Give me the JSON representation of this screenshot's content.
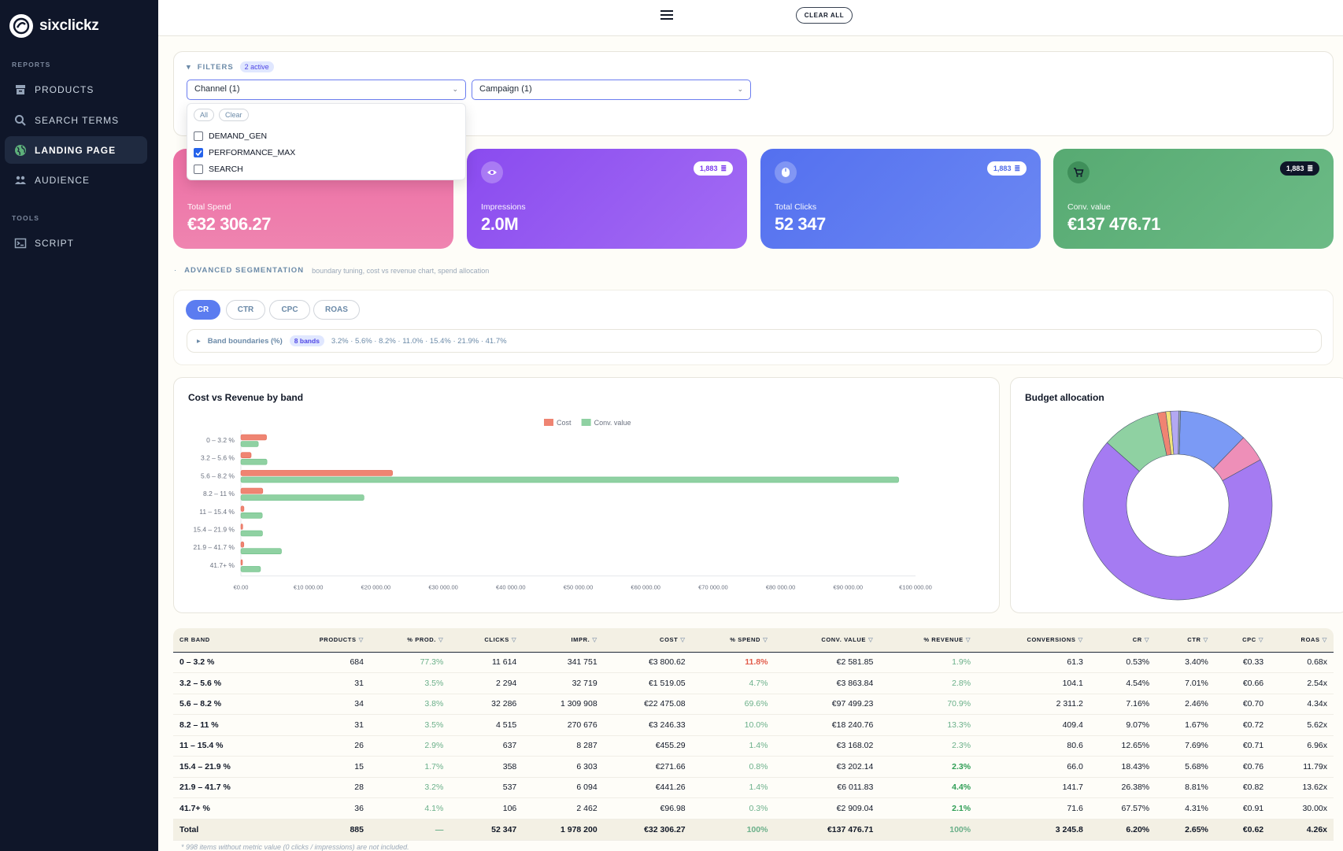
{
  "brand": {
    "name": "sixclickz"
  },
  "sidebar": {
    "sections": [
      {
        "title": "REPORTS",
        "items": [
          {
            "label": "PRODUCTS",
            "icon": "archive-icon"
          },
          {
            "label": "SEARCH TERMS",
            "icon": "search-icon"
          },
          {
            "label": "LANDING PAGE",
            "icon": "globe-icon",
            "active": true
          },
          {
            "label": "AUDIENCE",
            "icon": "users-icon"
          }
        ]
      },
      {
        "title": "TOOLS",
        "items": [
          {
            "label": "SCRIPT",
            "icon": "terminal-icon"
          }
        ]
      }
    ]
  },
  "topbar": {
    "clear_all": "CLEAR ALL"
  },
  "filters": {
    "title": "FILTERS",
    "active_count": "2 active",
    "channel_select": "Channel (1)",
    "campaign_select": "Campaign (1)",
    "dropdown": {
      "all": "All",
      "clear": "Clear",
      "options": [
        {
          "label": "DEMAND_GEN",
          "checked": false
        },
        {
          "label": "PERFORMANCE_MAX",
          "checked": true
        },
        {
          "label": "SEARCH",
          "checked": false
        }
      ]
    }
  },
  "kpis": [
    {
      "label": "Total Spend",
      "value": "€32 306.27",
      "badge": "",
      "color": "#ec6fa4"
    },
    {
      "label": "Impressions",
      "value": "2.0M",
      "badge": "1,883",
      "color": "#9353f0"
    },
    {
      "label": "Total Clicks",
      "value": "52 347",
      "badge": "1,883",
      "color": "#5a78f0"
    },
    {
      "label": "Conv. value",
      "value": "€137 476.71",
      "badge": "1,883",
      "color": "#5db07a"
    }
  ],
  "segmentation": {
    "title": "ADVANCED SEGMENTATION",
    "subtitle": "boundary tuning, cost vs revenue chart, spend allocation",
    "tabs": [
      "CR",
      "CTR",
      "CPC",
      "ROAS"
    ],
    "active_tab": "CR",
    "bands_label": "Band boundaries (%)",
    "bands_count": "8 bands",
    "bands_values": "3.2% · 5.6% · 8.2% · 11.0% · 15.4% · 21.9% · 41.7%"
  },
  "chart_data": [
    {
      "type": "bar",
      "orientation": "horizontal",
      "title": "Cost vs Revenue by band",
      "categories": [
        "0 – 3.2 %",
        "3.2 – 5.6 %",
        "5.6 – 8.2 %",
        "8.2 – 11 %",
        "11 – 15.4 %",
        "15.4 – 21.9 %",
        "21.9 – 41.7 %",
        "41.7+ %"
      ],
      "series": [
        {
          "name": "Cost",
          "color": "#ef8472",
          "values": [
            3800.62,
            1519.05,
            22475.08,
            3246.33,
            455.29,
            271.66,
            441.26,
            96.98
          ]
        },
        {
          "name": "Conv. value",
          "color": "#8fd1a2",
          "values": [
            2581.85,
            3863.84,
            97499.23,
            18240.76,
            3168.02,
            3202.14,
            6011.83,
            2909.04
          ]
        }
      ],
      "xlim": [
        0,
        100000
      ],
      "xticks": [
        "€0.00",
        "€10 000.00",
        "€20 000.00",
        "€30 000.00",
        "€40 000.00",
        "€50 000.00",
        "€60 000.00",
        "€70 000.00",
        "€80 000.00",
        "€90 000.00",
        "€100 000.00"
      ],
      "legend": "top-center"
    },
    {
      "type": "pie",
      "title": "Budget allocation",
      "donut": true,
      "slices": [
        {
          "value": 11.8,
          "color": "#7b9af5"
        },
        {
          "value": 4.7,
          "color": "#ee8fb8"
        },
        {
          "value": 69.6,
          "color": "#a57bf2"
        },
        {
          "value": 10.0,
          "color": "#8fd1a2"
        },
        {
          "value": 1.4,
          "color": "#ef8472"
        },
        {
          "value": 0.8,
          "color": "#f2e37a"
        },
        {
          "value": 1.4,
          "color": "#b3a8f2"
        },
        {
          "value": 0.3,
          "color": "#9aa8b8"
        }
      ]
    }
  ],
  "table": {
    "headers": [
      "CR BAND",
      "PRODUCTS",
      "% PROD.",
      "CLICKS",
      "IMPR.",
      "COST",
      "% SPEND",
      "CONV. VALUE",
      "% REVENUE",
      "CONVERSIONS",
      "CR",
      "CTR",
      "CPC",
      "ROAS"
    ],
    "rows": [
      [
        "0 – 3.2 %",
        "684",
        "77.3%",
        "11 614",
        "341 751",
        "€3 800.62",
        "11.8%",
        "€2 581.85",
        "1.9%",
        "61.3",
        "0.53%",
        "3.40%",
        "€0.33",
        "0.68x"
      ],
      [
        "3.2 – 5.6 %",
        "31",
        "3.5%",
        "2 294",
        "32 719",
        "€1 519.05",
        "4.7%",
        "€3 863.84",
        "2.8%",
        "104.1",
        "4.54%",
        "7.01%",
        "€0.66",
        "2.54x"
      ],
      [
        "5.6 – 8.2 %",
        "34",
        "3.8%",
        "32 286",
        "1 309 908",
        "€22 475.08",
        "69.6%",
        "€97 499.23",
        "70.9%",
        "2 311.2",
        "7.16%",
        "2.46%",
        "€0.70",
        "4.34x"
      ],
      [
        "8.2 – 11 %",
        "31",
        "3.5%",
        "4 515",
        "270 676",
        "€3 246.33",
        "10.0%",
        "€18 240.76",
        "13.3%",
        "409.4",
        "9.07%",
        "1.67%",
        "€0.72",
        "5.62x"
      ],
      [
        "11 – 15.4 %",
        "26",
        "2.9%",
        "637",
        "8 287",
        "€455.29",
        "1.4%",
        "€3 168.02",
        "2.3%",
        "80.6",
        "12.65%",
        "7.69%",
        "€0.71",
        "6.96x"
      ],
      [
        "15.4 – 21.9 %",
        "15",
        "1.7%",
        "358",
        "6 303",
        "€271.66",
        "0.8%",
        "€3 202.14",
        "2.3%",
        "66.0",
        "18.43%",
        "5.68%",
        "€0.76",
        "11.79x"
      ],
      [
        "21.9 – 41.7 %",
        "28",
        "3.2%",
        "537",
        "6 094",
        "€441.26",
        "1.4%",
        "€6 011.83",
        "4.4%",
        "141.7",
        "26.38%",
        "8.81%",
        "€0.82",
        "13.62x"
      ],
      [
        "41.7+ %",
        "36",
        "4.1%",
        "106",
        "2 462",
        "€96.98",
        "0.3%",
        "€2 909.04",
        "2.1%",
        "71.6",
        "67.57%",
        "4.31%",
        "€0.91",
        "30.00x"
      ]
    ],
    "total": [
      "Total",
      "885",
      "—",
      "52 347",
      "1 978 200",
      "€32 306.27",
      "100%",
      "€137 476.71",
      "100%",
      "3 245.8",
      "6.20%",
      "2.65%",
      "€0.62",
      "4.26x"
    ],
    "footnote": "* 998 items without metric value (0 clicks / impressions) are not included."
  }
}
